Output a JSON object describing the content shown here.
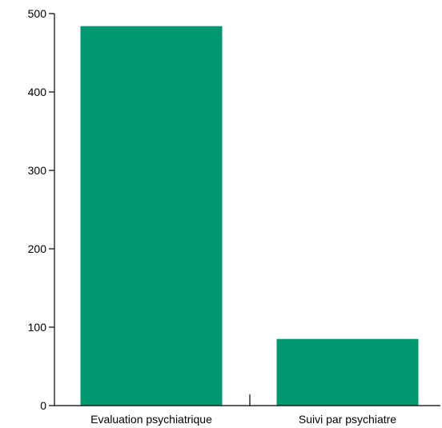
{
  "chart_data": {
    "type": "bar",
    "categories": [
      "Evaluation psychiatrique",
      "Suivi par psychiatre"
    ],
    "values": [
      484,
      85
    ],
    "title": "",
    "xlabel": "",
    "ylabel": "",
    "ylim": [
      0,
      500
    ],
    "yticks": [
      "0",
      "100",
      "200",
      "300",
      "400",
      "500"
    ],
    "grid": false,
    "legend": "none",
    "bar_color": "#009670"
  }
}
